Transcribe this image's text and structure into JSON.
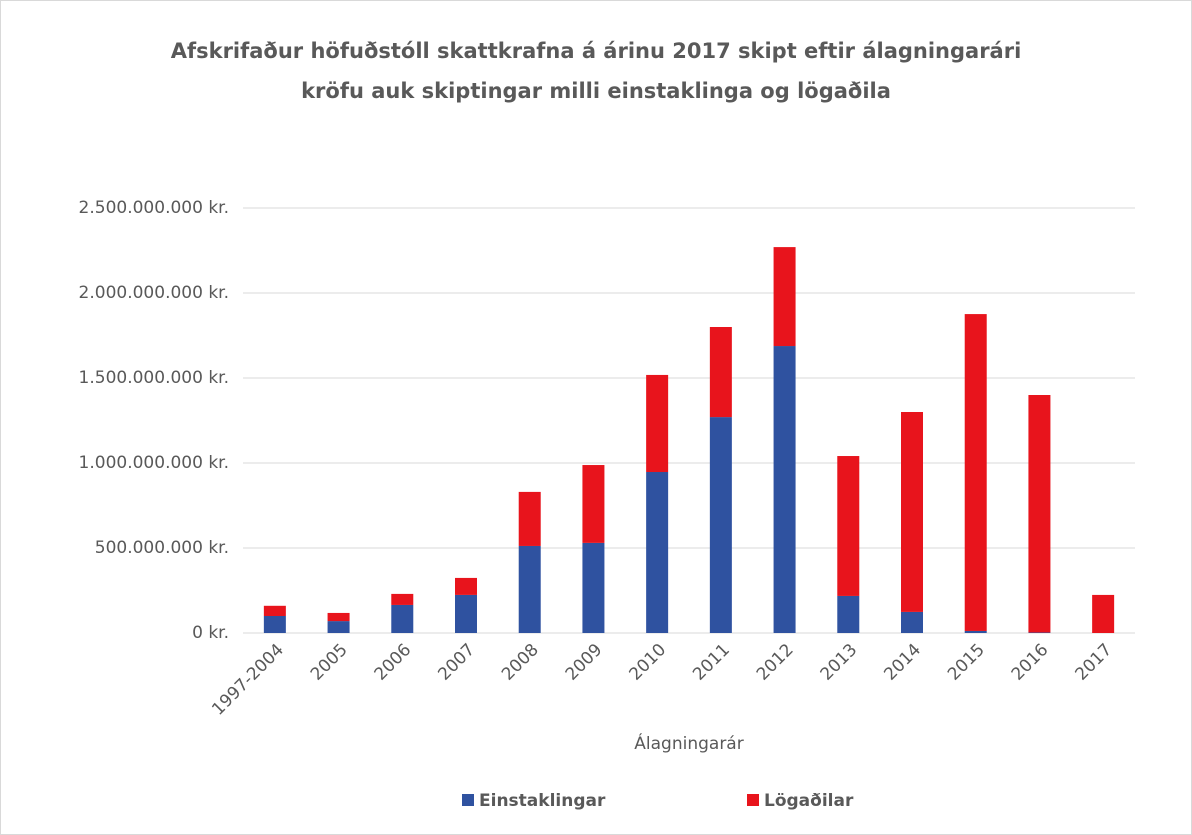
{
  "chart_data": {
    "type": "stacked_bar",
    "title": [
      "Afskrifaður höfuðstóll skattkrafna á árinu 2017 skipt eftir álagningarári",
      "kröfu auk skiptingar milli einstaklinga og lögaðila"
    ],
    "x_label": "Álagningarár",
    "categories": [
      "1997-2004",
      "2005",
      "2006",
      "2007",
      "2008",
      "2009",
      "2010",
      "2011",
      "2012",
      "2013",
      "2014",
      "2015",
      "2016",
      "2017"
    ],
    "series": [
      {
        "name": "Einstaklingar",
        "color": "#2f52a0",
        "values": [
          100000000,
          70000000,
          165000000,
          224000000,
          512000000,
          530000000,
          947000000,
          1270000000,
          1688000000,
          218000000,
          124000000,
          12000000,
          3000000,
          0
        ]
      },
      {
        "name": "Lögaðilar",
        "color": "#e8141c",
        "values": [
          60000000,
          48000000,
          65000000,
          100000000,
          318000000,
          458000000,
          571000000,
          530000000,
          582000000,
          823000000,
          1176000000,
          1864000000,
          1397000000,
          224000000
        ]
      }
    ],
    "ylim": [
      0,
      2500000000
    ],
    "yticks": [
      {
        "value": 0,
        "label": "0 kr."
      },
      {
        "value": 500000000,
        "label": "500.000.000 kr."
      },
      {
        "value": 1000000000,
        "label": "1.000.000.000 kr."
      },
      {
        "value": 1500000000,
        "label": "1.500.000.000 kr."
      },
      {
        "value": 2000000000,
        "label": "2.000.000.000 kr."
      },
      {
        "value": 2500000000,
        "label": "2.500.000.000 kr."
      }
    ],
    "grid": true,
    "legend": "bottom"
  }
}
